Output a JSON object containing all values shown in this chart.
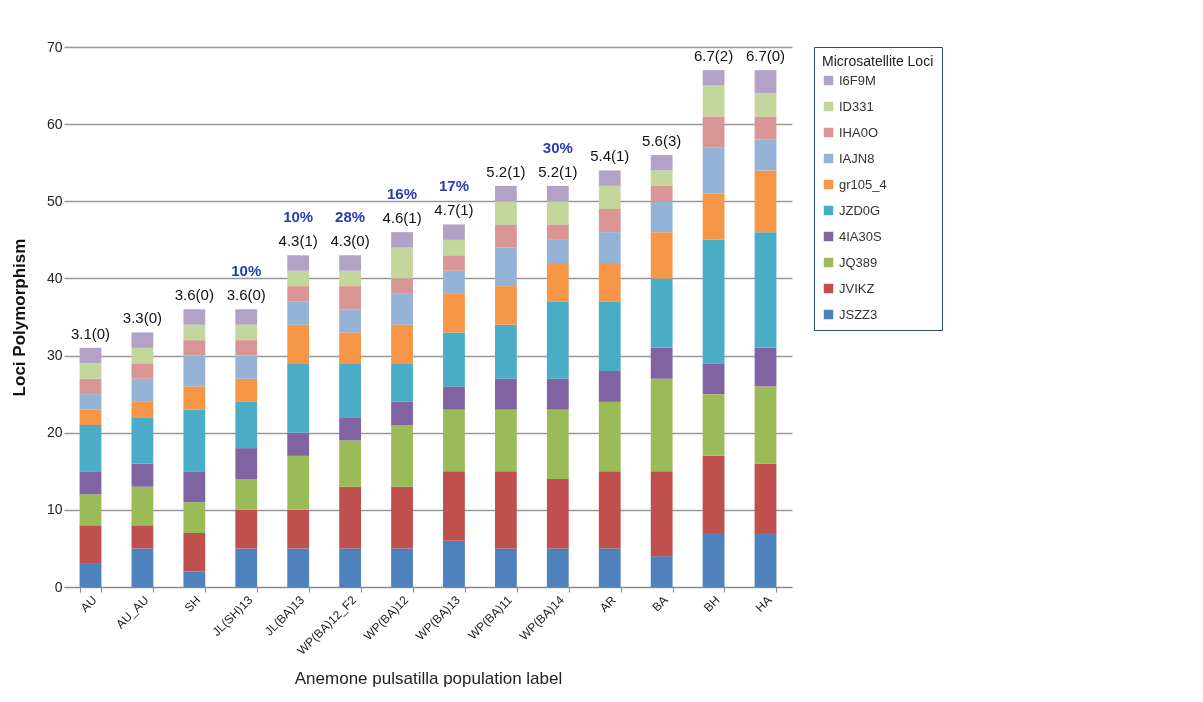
{
  "chart_data": {
    "type": "bar",
    "stacked": true,
    "xlabel": "Anemone pulsatilla population label",
    "ylabel": "Loci Polymorphism",
    "legend_title": "Microsatellite Loci",
    "legend": "right",
    "grid": "y",
    "categories": [
      "AU",
      "AU_AU",
      "SH",
      "JL(SH)13",
      "JL(BA)13",
      "WP(BA)12_F2",
      "WP(BA)12",
      "WP(BA)13",
      "WP(BA)11",
      "WP(BA)14",
      "AR",
      "BA",
      "BH",
      "HA"
    ],
    "series": [
      {
        "name": "JSZZ3",
        "color": "#4f81bd",
        "values": [
          3,
          5,
          2,
          5,
          5,
          5,
          5,
          6,
          5,
          5,
          5,
          4,
          7,
          7
        ]
      },
      {
        "name": "JVIKZ",
        "color": "#c0504d",
        "values": [
          5,
          3,
          5,
          5,
          5,
          8,
          8,
          9,
          10,
          9,
          10,
          11,
          10,
          9
        ]
      },
      {
        "name": "JQ389",
        "color": "#9bbb59",
        "values": [
          4,
          5,
          4,
          4,
          7,
          6,
          8,
          8,
          8,
          9,
          9,
          12,
          8,
          10
        ]
      },
      {
        "name": "4IA30S",
        "color": "#8064a2",
        "values": [
          3,
          3,
          4,
          4,
          3,
          3,
          3,
          3,
          4,
          4,
          4,
          4,
          4,
          5
        ]
      },
      {
        "name": "JZD0G",
        "color": "#4bacc6",
        "values": [
          6,
          6,
          8,
          6,
          9,
          7,
          5,
          7,
          7,
          10,
          9,
          9,
          16,
          15
        ]
      },
      {
        "name": "gr105_4",
        "color": "#f79646",
        "values": [
          2,
          2,
          3,
          3,
          5,
          4,
          5,
          5,
          5,
          5,
          5,
          6,
          6,
          8
        ]
      },
      {
        "name": "IAJN8",
        "color": "#95b3d7",
        "values": [
          2,
          3,
          4,
          3,
          3,
          3,
          4,
          3,
          5,
          3,
          4,
          4,
          6,
          4
        ]
      },
      {
        "name": "IHA0O",
        "color": "#d99694",
        "values": [
          2,
          2,
          2,
          2,
          2,
          3,
          2,
          2,
          3,
          2,
          3,
          2,
          4,
          3
        ]
      },
      {
        "name": "ID331",
        "color": "#c3d69b",
        "values": [
          2,
          2,
          2,
          2,
          2,
          2,
          4,
          2,
          3,
          3,
          3,
          2,
          4,
          3
        ]
      },
      {
        "name": "I6F9M",
        "color": "#b3a2c7",
        "values": [
          2,
          2,
          2,
          2,
          2,
          2,
          2,
          2,
          2,
          2,
          2,
          2,
          2,
          3
        ]
      }
    ],
    "ylim": [
      0,
      70
    ],
    "yticks": [
      0,
      10,
      20,
      30,
      40,
      50,
      60,
      70
    ],
    "annotations": [
      {
        "text": "3.1(0)",
        "x": "AU",
        "y": 31
      },
      {
        "text": "3.3(0)",
        "x": "AU_AU",
        "y": 33
      },
      {
        "text": "3.6(0)",
        "x": "SH",
        "y": 36
      },
      {
        "text": "3.6(0)",
        "x": "JL(SH)13",
        "y": 36
      },
      {
        "text": "10%",
        "x": "JL(SH)13",
        "y": 36
      },
      {
        "text": "4.3(1)",
        "x": "JL(BA)13",
        "y": 43
      },
      {
        "text": "10%",
        "x": "JL(BA)13",
        "y": 43
      },
      {
        "text": "4.3(0)",
        "x": "WP(BA)12_F2",
        "y": 43
      },
      {
        "text": "28%",
        "x": "WP(BA)12_F2",
        "y": 43
      },
      {
        "text": "4.6(1)",
        "x": "WP(BA)12",
        "y": 46
      },
      {
        "text": "16%",
        "x": "WP(BA)12",
        "y": 46
      },
      {
        "text": "4.7(1)",
        "x": "WP(BA)13",
        "y": 47
      },
      {
        "text": "17%",
        "x": "WP(BA)13",
        "y": 47
      },
      {
        "text": "5.2(1)",
        "x": "WP(BA)11",
        "y": 52
      },
      {
        "text": "5.2(1)",
        "x": "WP(BA)14",
        "y": 52
      },
      {
        "text": "30%",
        "x": "WP(BA)14",
        "y": 52
      },
      {
        "text": "5.4(1)",
        "x": "AR",
        "y": 54
      },
      {
        "text": "5.6(3)",
        "x": "BA",
        "y": 56
      },
      {
        "text": "6.7(2)",
        "x": "BH",
        "y": 67
      },
      {
        "text": "6.7(0)",
        "x": "HA",
        "y": 67
      }
    ]
  }
}
